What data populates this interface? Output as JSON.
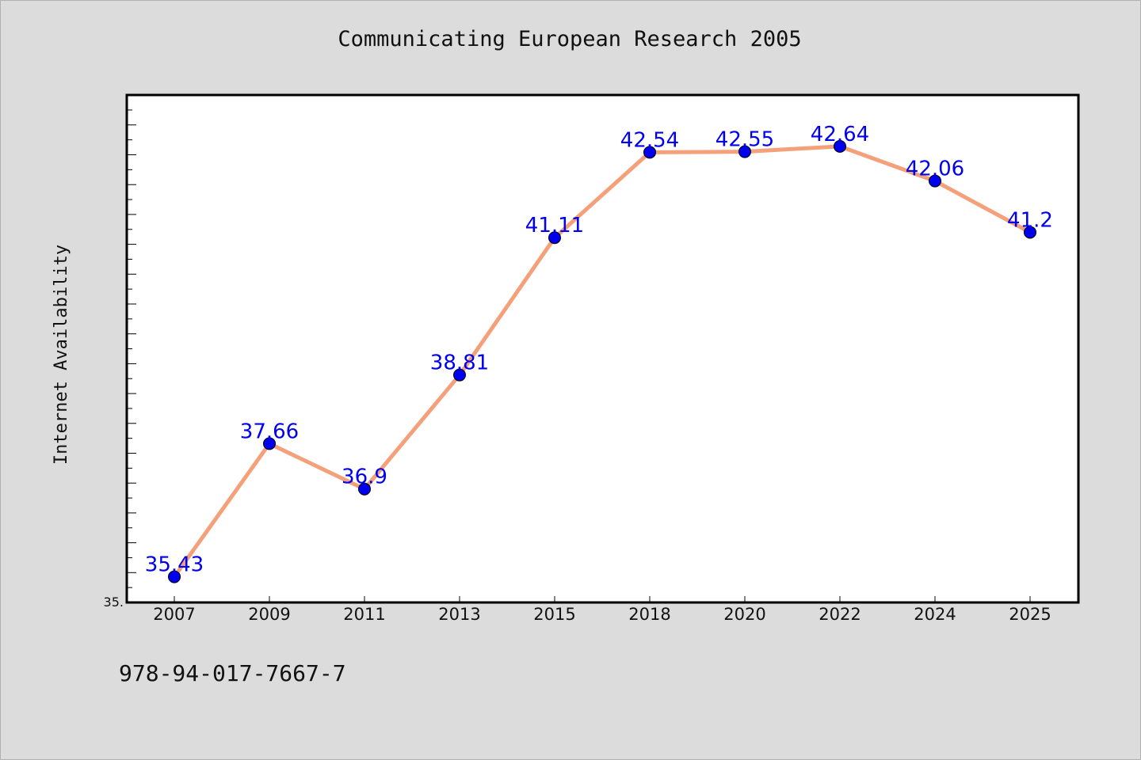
{
  "chart_data": {
    "type": "line",
    "title": "Communicating European Research 2005",
    "xlabel": "",
    "ylabel": "Internet Availability",
    "categories": [
      "2007",
      "2009",
      "2011",
      "2013",
      "2015",
      "2018",
      "2020",
      "2022",
      "2024",
      "2025"
    ],
    "series": [
      {
        "values": [
          35.43,
          37.66,
          36.9,
          38.81,
          41.11,
          42.54,
          42.55,
          42.64,
          42.06,
          41.2
        ],
        "labels": [
          "35.43",
          "37.66",
          "36.9",
          "38.81",
          "41.11",
          "42.54",
          "42.55",
          "42.64",
          "42.06",
          "41.2"
        ],
        "line_color": "#f4a07a",
        "marker_color": "#0000ee"
      }
    ],
    "ylim": [
      35.0,
      43.5
    ],
    "y_tick_labels": [
      "35."
    ],
    "grid": false,
    "legend": "none"
  },
  "footer": {
    "isbn": "978-94-017-7667-7"
  }
}
